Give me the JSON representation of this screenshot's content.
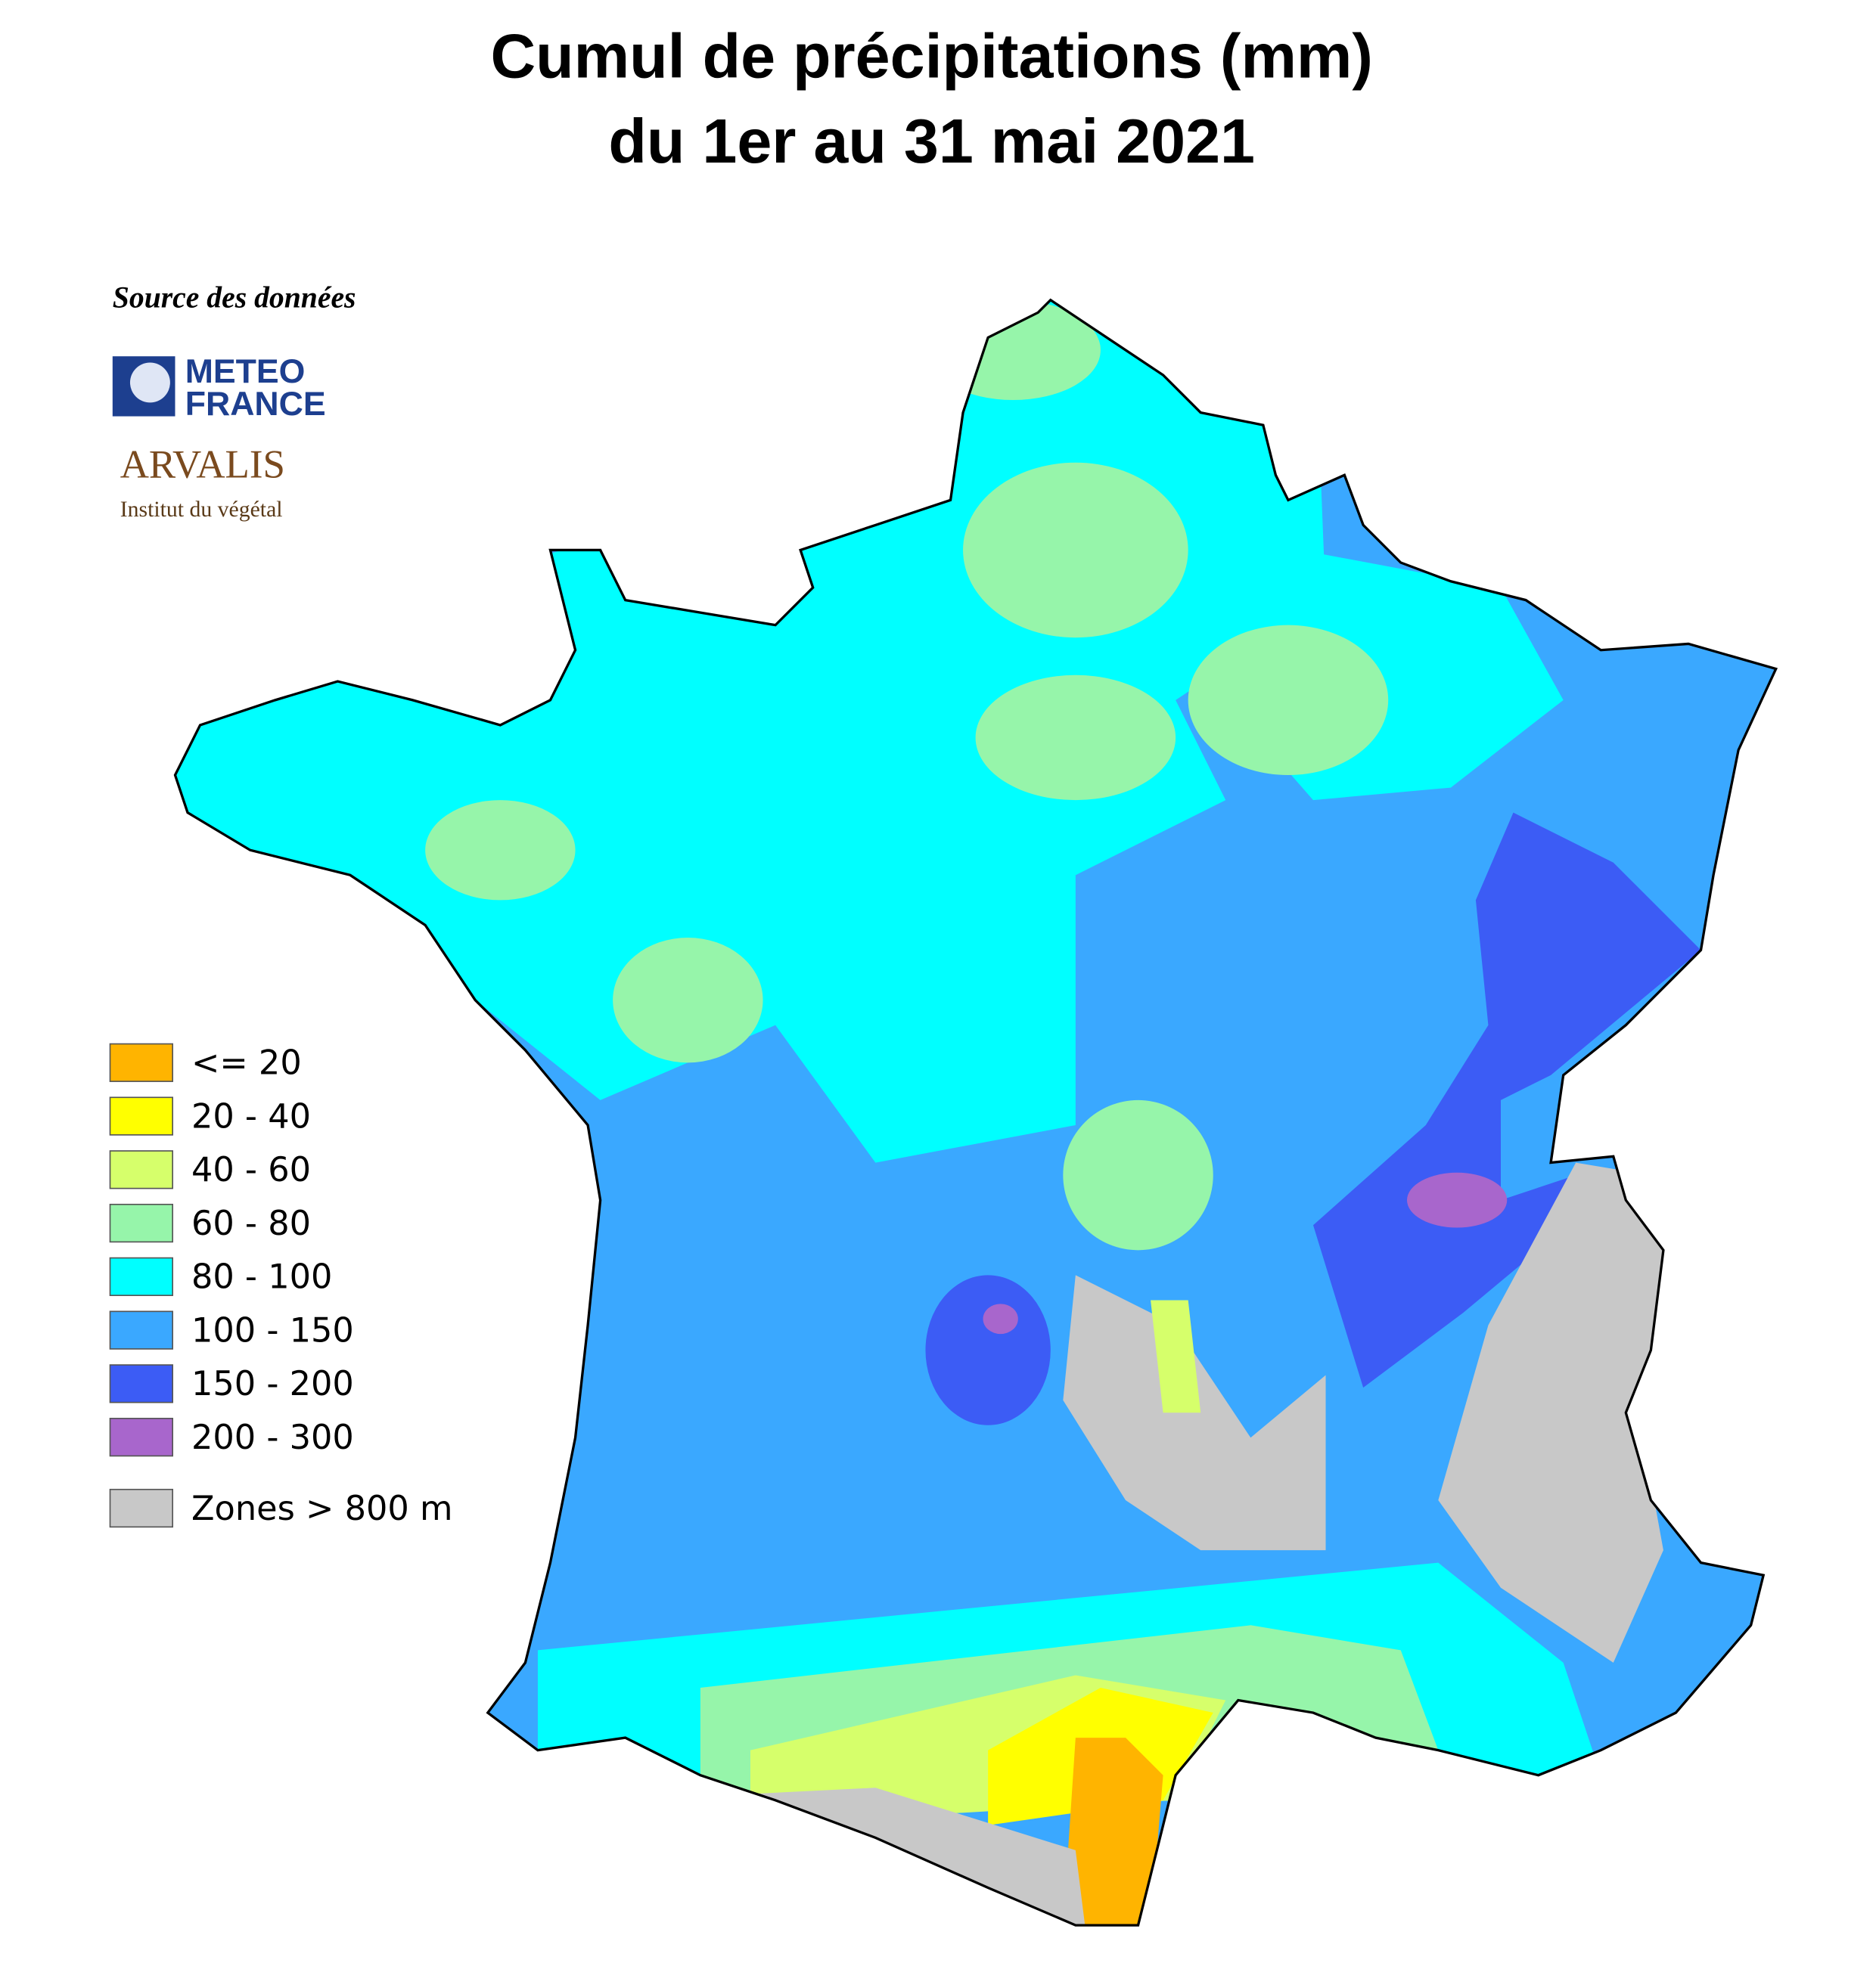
{
  "title": [
    "Cumul de précipitations (mm)",
    "du 1er au 31 mai 2021"
  ],
  "source": {
    "label": "Source des données",
    "logos": [
      "METEO",
      "FRANCE",
      "ARVALIS",
      "Institut du végétal"
    ]
  },
  "legend": [
    {
      "label": "<= 20",
      "color": "#ffb400"
    },
    {
      "label": "20 - 40",
      "color": "#ffff00"
    },
    {
      "label": "40 - 60",
      "color": "#d6ff6b"
    },
    {
      "label": "60 - 80",
      "color": "#96f5aa"
    },
    {
      "label": "80 - 100",
      "color": "#00ffff"
    },
    {
      "label": "100 - 150",
      "color": "#3aa8ff"
    },
    {
      "label": "150 - 200",
      "color": "#3c5cf5"
    },
    {
      "label": "200 - 300",
      "color": "#a866cc"
    },
    {
      "label": "Zones > 800 m",
      "color": "#c8c8c8"
    }
  ]
}
